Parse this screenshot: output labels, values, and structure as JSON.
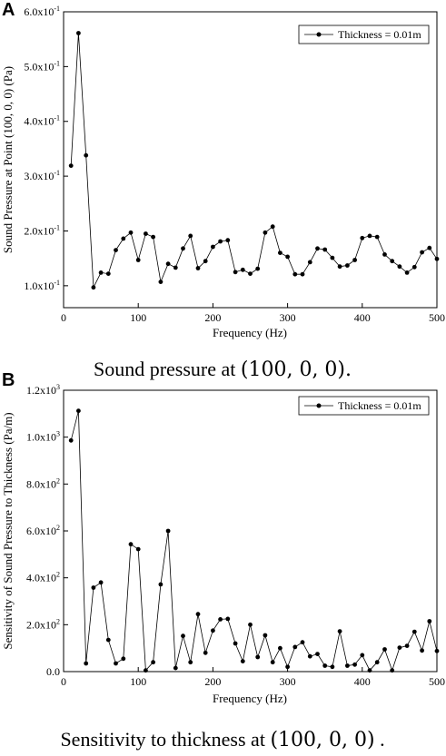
{
  "chart_data": [
    {
      "panel": "A",
      "type": "line",
      "xlabel": "Frequency (Hz)",
      "ylabel": "Sound Pressure at Point (100, 0, 0) (Pa)",
      "xlim": [
        0,
        500
      ],
      "ylim": [
        0.06,
        0.6
      ],
      "x_ticks": [
        0,
        100,
        200,
        300,
        400,
        500
      ],
      "x_tick_labels": [
        "0",
        "100",
        "200",
        "300",
        "400",
        "500"
      ],
      "y_ticks": [
        0.1,
        0.2,
        0.3,
        0.4,
        0.5,
        0.6
      ],
      "y_tick_labels": [
        {
          "mantissa": "1.0x10",
          "exp": "-1"
        },
        {
          "mantissa": "2.0x10",
          "exp": "-1"
        },
        {
          "mantissa": "3.0x10",
          "exp": "-1"
        },
        {
          "mantissa": "4.0x10",
          "exp": "-1"
        },
        {
          "mantissa": "5.0x10",
          "exp": "-1"
        },
        {
          "mantissa": "6.0x10",
          "exp": "-1"
        }
      ],
      "legend": "top-right",
      "grid": false,
      "series": [
        {
          "name": "Thickness = 0.01m",
          "x": [
            10,
            20,
            30,
            40,
            50,
            60,
            70,
            80,
            90,
            100,
            110,
            120,
            130,
            140,
            150,
            160,
            170,
            180,
            190,
            200,
            210,
            220,
            230,
            240,
            250,
            260,
            270,
            280,
            290,
            300,
            310,
            320,
            330,
            340,
            350,
            360,
            370,
            380,
            390,
            400,
            410,
            420,
            430,
            440,
            450,
            460,
            470,
            480,
            490,
            500
          ],
          "y": [
            0.319,
            0.561,
            0.338,
            0.097,
            0.124,
            0.122,
            0.165,
            0.186,
            0.197,
            0.147,
            0.195,
            0.189,
            0.107,
            0.14,
            0.133,
            0.168,
            0.191,
            0.132,
            0.145,
            0.171,
            0.181,
            0.183,
            0.125,
            0.129,
            0.122,
            0.131,
            0.197,
            0.208,
            0.16,
            0.153,
            0.121,
            0.121,
            0.143,
            0.168,
            0.166,
            0.151,
            0.135,
            0.137,
            0.147,
            0.187,
            0.191,
            0.189,
            0.157,
            0.145,
            0.135,
            0.124,
            0.134,
            0.161,
            0.169,
            0.149
          ]
        }
      ],
      "caption_prefix": "Sound pressure at ",
      "caption_math": "(100, 0, 0).",
      "caption_suffix": ""
    },
    {
      "panel": "B",
      "type": "line",
      "xlabel": "Frequency (Hz)",
      "ylabel": "Sensitivity of Sound Pressure to Thickness (Pa/m)",
      "xlim": [
        0,
        500
      ],
      "ylim": [
        0,
        1200
      ],
      "x_ticks": [
        0,
        100,
        200,
        300,
        400,
        500
      ],
      "x_tick_labels": [
        "0",
        "100",
        "200",
        "300",
        "400",
        "500"
      ],
      "y_ticks": [
        0,
        200,
        400,
        600,
        800,
        1000,
        1200
      ],
      "y_tick_labels": [
        {
          "mantissa": "0.0",
          "exp": ""
        },
        {
          "mantissa": "2.0x10",
          "exp": "2"
        },
        {
          "mantissa": "4.0x10",
          "exp": "2"
        },
        {
          "mantissa": "6.0x10",
          "exp": "2"
        },
        {
          "mantissa": "8.0x10",
          "exp": "2"
        },
        {
          "mantissa": "1.0x10",
          "exp": "3"
        },
        {
          "mantissa": "1.2x10",
          "exp": "3"
        }
      ],
      "legend": "top-right",
      "grid": false,
      "series": [
        {
          "name": "Thickness = 0.01m",
          "x": [
            10,
            20,
            30,
            40,
            50,
            60,
            70,
            80,
            90,
            100,
            110,
            120,
            130,
            140,
            150,
            160,
            170,
            180,
            190,
            200,
            210,
            220,
            230,
            240,
            250,
            260,
            270,
            280,
            290,
            300,
            310,
            320,
            330,
            340,
            350,
            360,
            370,
            380,
            390,
            400,
            410,
            420,
            430,
            440,
            450,
            460,
            470,
            480,
            490,
            500
          ],
          "y": [
            986,
            1112,
            35,
            358,
            380,
            135,
            35,
            55,
            543,
            522,
            5,
            40,
            372,
            600,
            15,
            152,
            40,
            245,
            80,
            175,
            223,
            225,
            120,
            44,
            200,
            62,
            155,
            40,
            100,
            20,
            105,
            125,
            65,
            75,
            25,
            20,
            172,
            25,
            30,
            70,
            5,
            40,
            95,
            5,
            102,
            110,
            170,
            90,
            215,
            88
          ]
        }
      ],
      "caption_prefix": "Sensitivity to thickness at ",
      "caption_math": "(100, 0, 0)",
      "caption_suffix": " ."
    }
  ]
}
